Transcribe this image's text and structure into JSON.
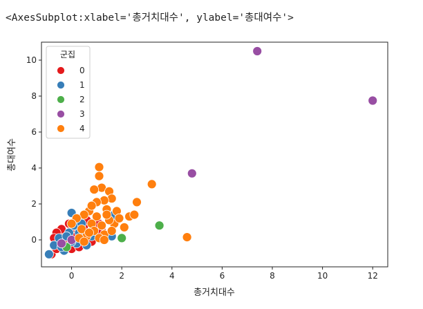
{
  "output_repr": "<AxesSubplot:xlabel='총거치대수', ylabel='총대여수'>",
  "chart_data": {
    "type": "scatter",
    "xlabel": "총거치대수",
    "ylabel": "총대여수",
    "xlim": [
      -1.2,
      12.6
    ],
    "ylim": [
      -1.5,
      11
    ],
    "xticks": [
      0,
      2,
      4,
      6,
      8,
      10,
      12
    ],
    "yticks": [
      0,
      2,
      4,
      6,
      8,
      10
    ],
    "legend": {
      "title": "군집",
      "placement": "top-left"
    },
    "series": [
      {
        "name": "0",
        "color": "#e41a1c",
        "points": [
          [
            -0.8,
            -0.8
          ],
          [
            -0.6,
            -0.5
          ],
          [
            -0.5,
            0.0
          ],
          [
            -0.3,
            0.2
          ],
          [
            -0.2,
            -0.3
          ],
          [
            0.0,
            -0.5
          ],
          [
            0.1,
            0.3
          ],
          [
            0.2,
            0.0
          ],
          [
            0.3,
            0.5
          ],
          [
            0.4,
            -0.2
          ],
          [
            0.5,
            0.8
          ],
          [
            0.6,
            0.3
          ],
          [
            0.7,
            0.1
          ],
          [
            0.9,
            0.6
          ],
          [
            1.0,
            0.2
          ],
          [
            1.2,
            0.5
          ],
          [
            -0.4,
            0.6
          ],
          [
            -0.1,
            0.9
          ],
          [
            0.2,
            1.0
          ],
          [
            0.4,
            1.2
          ],
          [
            -0.6,
            0.4
          ],
          [
            -0.7,
            0.1
          ],
          [
            0.0,
            0.2
          ],
          [
            0.3,
            -0.4
          ],
          [
            -0.2,
            0.0
          ],
          [
            0.8,
            -0.1
          ],
          [
            1.1,
            0.9
          ],
          [
            0.6,
            1.1
          ]
        ]
      },
      {
        "name": "1",
        "color": "#377eb8",
        "points": [
          [
            -0.9,
            -0.8
          ],
          [
            -0.7,
            -0.3
          ],
          [
            -0.5,
            0.1
          ],
          [
            -0.3,
            -0.6
          ],
          [
            -0.1,
            0.4
          ],
          [
            0.0,
            1.5
          ],
          [
            0.1,
            0.8
          ],
          [
            0.3,
            0.4
          ],
          [
            0.5,
            0.0
          ],
          [
            0.2,
            -0.2
          ],
          [
            0.4,
            0.9
          ],
          [
            -0.2,
            0.2
          ],
          [
            0.0,
            -0.1
          ],
          [
            1.6,
            0.2
          ],
          [
            1.7,
            1.4
          ],
          [
            0.6,
            -0.3
          ],
          [
            -0.4,
            -0.4
          ],
          [
            0.8,
            0.2
          ]
        ]
      },
      {
        "name": "2",
        "color": "#4daf4a",
        "points": [
          [
            3.5,
            0.8
          ],
          [
            2.0,
            0.1
          ],
          [
            -0.2,
            -0.4
          ]
        ]
      },
      {
        "name": "3",
        "color": "#984ea3",
        "points": [
          [
            7.4,
            10.5
          ],
          [
            12.0,
            7.75
          ],
          [
            4.8,
            3.7
          ],
          [
            -0.4,
            -0.2
          ],
          [
            0.0,
            0.0
          ]
        ]
      },
      {
        "name": "4",
        "color": "#ff7f0e",
        "points": [
          [
            1.1,
            4.05
          ],
          [
            1.2,
            2.9
          ],
          [
            1.1,
            3.55
          ],
          [
            0.9,
            2.8
          ],
          [
            1.5,
            2.7
          ],
          [
            1.6,
            2.3
          ],
          [
            1.3,
            2.2
          ],
          [
            1.0,
            2.1
          ],
          [
            2.6,
            2.1
          ],
          [
            3.2,
            3.1
          ],
          [
            1.4,
            1.7
          ],
          [
            1.8,
            1.6
          ],
          [
            2.3,
            1.3
          ],
          [
            2.5,
            1.4
          ],
          [
            2.1,
            0.7
          ],
          [
            1.7,
            0.9
          ],
          [
            1.5,
            1.1
          ],
          [
            1.0,
            1.3
          ],
          [
            0.7,
            1.6
          ],
          [
            0.5,
            1.4
          ],
          [
            0.8,
            0.9
          ],
          [
            1.2,
            0.8
          ],
          [
            1.3,
            0.3
          ],
          [
            0.9,
            0.5
          ],
          [
            0.6,
            0.2
          ],
          [
            1.1,
            0.1
          ],
          [
            1.3,
            0.0
          ],
          [
            0.4,
            0.6
          ],
          [
            0.2,
            1.2
          ],
          [
            0.0,
            0.9
          ],
          [
            4.6,
            0.15
          ],
          [
            0.3,
            0.1
          ],
          [
            0.7,
            0.4
          ],
          [
            1.6,
            0.5
          ],
          [
            0.5,
            -0.1
          ],
          [
            1.9,
            1.2
          ],
          [
            0.8,
            1.9
          ],
          [
            1.4,
            1.4
          ]
        ]
      }
    ]
  }
}
